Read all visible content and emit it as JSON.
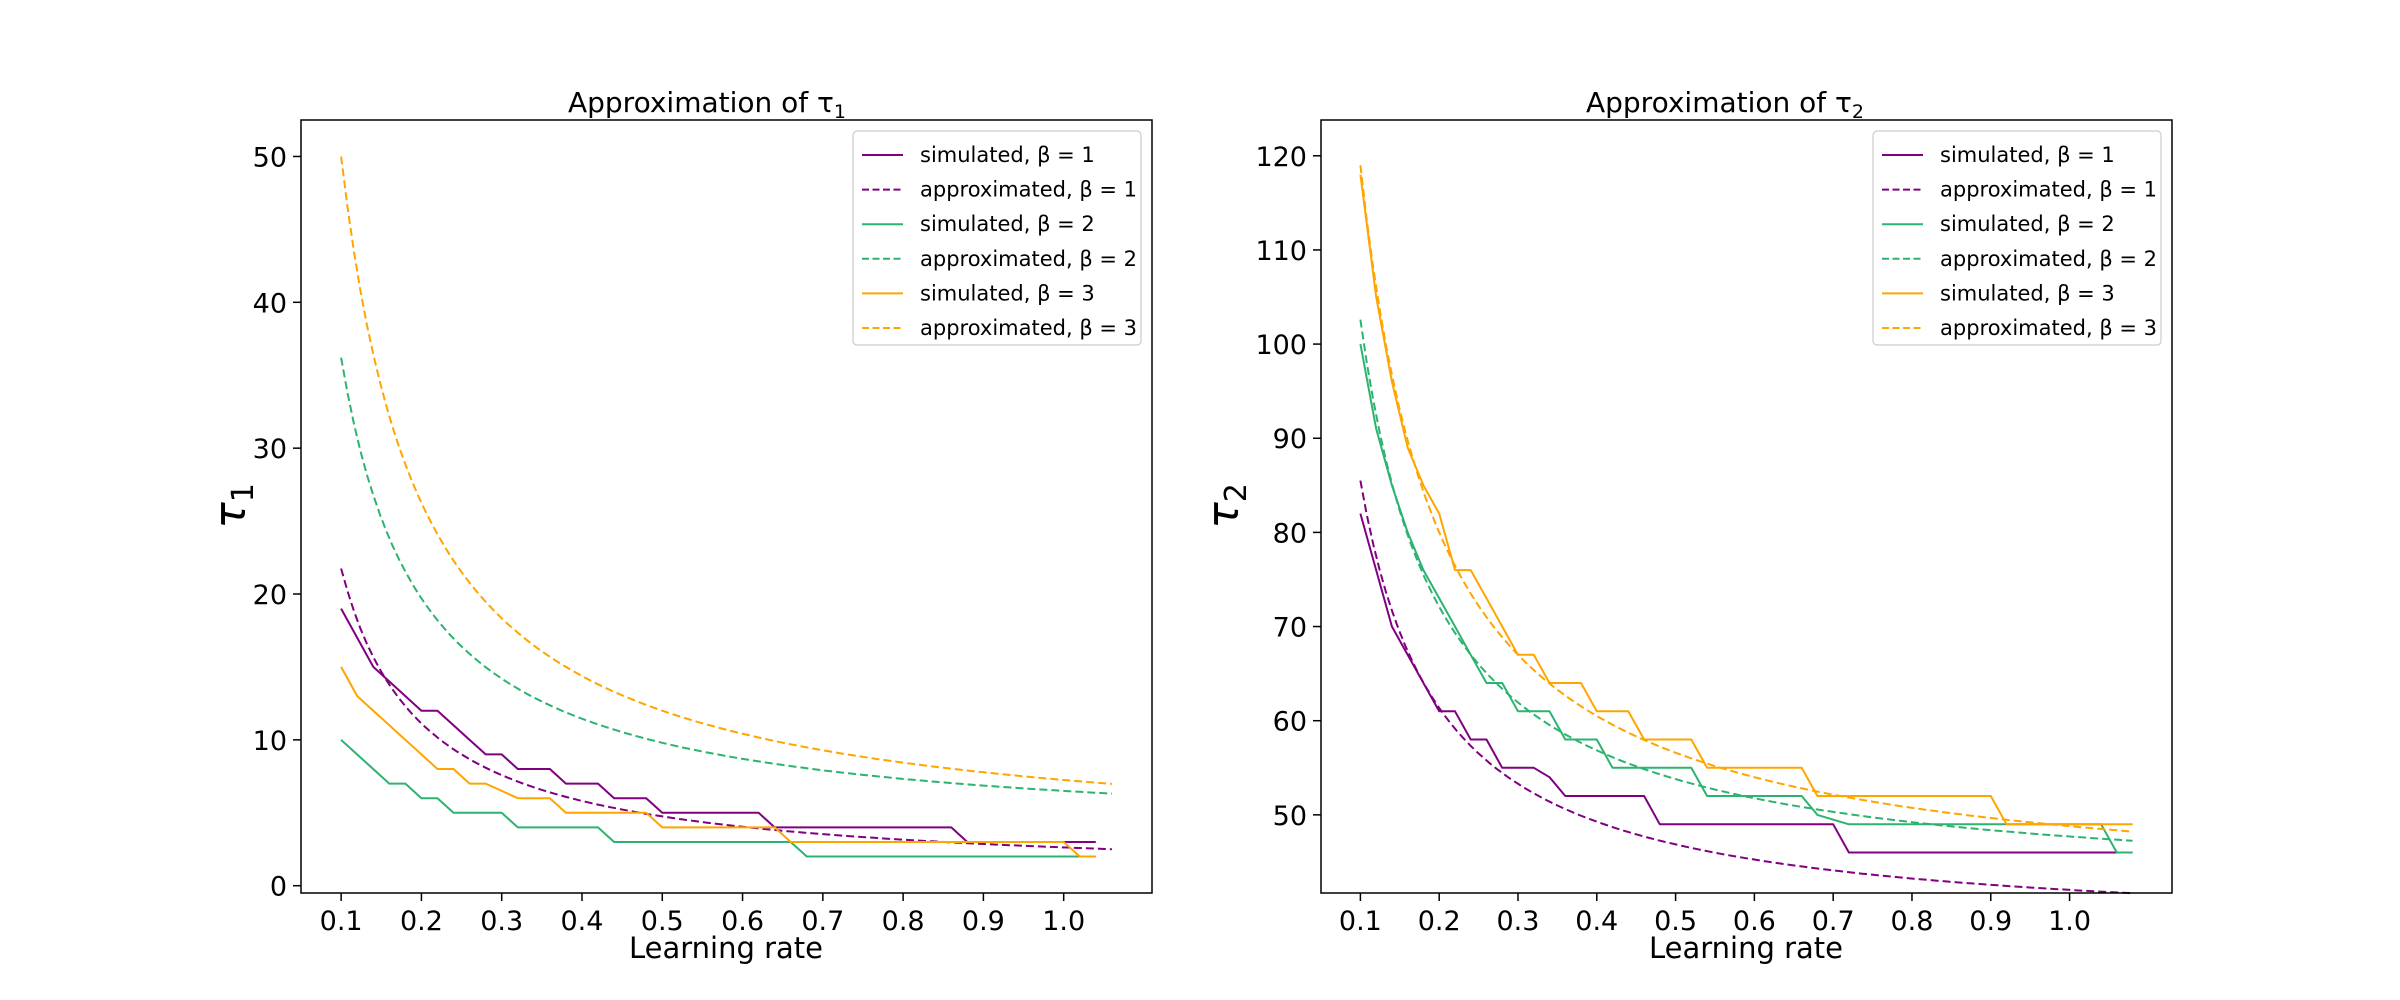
{
  "chart_data": [
    {
      "type": "line",
      "title": "Approximation of τ",
      "title_subscript": "1",
      "xlabel": "Learning rate",
      "ylabel": "τ",
      "ylabel_subscript": "1",
      "xlim": [
        0.05,
        1.11
      ],
      "ylim": [
        -0.5,
        52.5
      ],
      "xticks": [
        0.1,
        0.2,
        0.3,
        0.4,
        0.5,
        0.6,
        0.7,
        0.8,
        0.9,
        1.0
      ],
      "xtick_labels": [
        "0.1",
        "0.2",
        "0.3",
        "0.4",
        "0.5",
        "0.6",
        "0.7",
        "0.8",
        "0.9",
        "1.0"
      ],
      "yticks": [
        0,
        10,
        20,
        30,
        40,
        50
      ],
      "ytick_labels": [
        "0",
        "10",
        "20",
        "30",
        "40",
        "50"
      ],
      "grid": false,
      "legend_position": "top-right",
      "series": [
        {
          "name": "simulated, β = 1",
          "color": "#800080",
          "dash": "solid",
          "x": [
            0.1,
            0.14,
            0.18,
            0.2,
            0.22,
            0.26,
            0.28,
            0.3,
            0.32,
            0.34,
            0.36,
            0.38,
            0.4,
            0.42,
            0.44,
            0.46,
            0.48,
            0.5,
            0.52,
            0.54,
            0.56,
            0.58,
            0.6,
            0.62,
            0.64,
            0.66,
            0.68,
            0.7,
            0.72,
            0.74,
            0.76,
            0.78,
            0.8,
            0.82,
            0.84,
            0.86,
            0.88,
            0.9,
            0.92,
            0.94,
            0.96,
            0.98,
            1.0,
            1.02,
            1.04
          ],
          "y": [
            19,
            15,
            13,
            12,
            12,
            10,
            9,
            9,
            8,
            8,
            8,
            7,
            7,
            7,
            6,
            6,
            6,
            5,
            5,
            5,
            5,
            5,
            5,
            5,
            4,
            4,
            4,
            4,
            4,
            4,
            4,
            4,
            4,
            4,
            4,
            4,
            3,
            3,
            3,
            3,
            3,
            3,
            3,
            3,
            3
          ]
        },
        {
          "name": "approximated, β = 1",
          "color": "#800080",
          "dash": "dashed",
          "formula": "2.125/x + 0.5",
          "x_range": [
            0.1,
            1.06
          ]
        },
        {
          "name": "simulated, β = 2",
          "color": "#2db370",
          "dash": "solid",
          "x": [
            0.1,
            0.16,
            0.18,
            0.2,
            0.22,
            0.24,
            0.3,
            0.32,
            0.42,
            0.44,
            0.66,
            0.68,
            1.04
          ],
          "y": [
            10,
            7,
            7,
            6,
            6,
            5,
            5,
            4,
            4,
            3,
            3,
            2,
            2
          ]
        },
        {
          "name": "approximated, β = 2",
          "color": "#2db370",
          "dash": "dashed",
          "formula": "3.3/x + 3.2",
          "x_range": [
            0.1,
            1.06
          ]
        },
        {
          "name": "simulated, β = 3",
          "color": "#ffa500",
          "dash": "solid",
          "x": [
            0.1,
            0.12,
            0.22,
            0.24,
            0.26,
            0.28,
            0.32,
            0.34,
            0.36,
            0.38,
            0.46,
            0.48,
            0.5,
            0.62,
            0.64,
            0.66,
            0.68,
            0.9,
            0.92,
            1.0,
            1.02,
            1.04
          ],
          "y": [
            15,
            13,
            8,
            8,
            7,
            7,
            6,
            6,
            6,
            5,
            5,
            5,
            4,
            4,
            4,
            3,
            3,
            3,
            3,
            3,
            2,
            2
          ]
        },
        {
          "name": "approximated, β = 3",
          "color": "#ffa500",
          "dash": "dashed",
          "formula": "4.75/x + 2.5",
          "x_range": [
            0.1,
            1.06
          ]
        }
      ]
    },
    {
      "type": "line",
      "title": "Approximation of τ",
      "title_subscript": "2",
      "xlabel": "Learning rate",
      "ylabel": "τ",
      "ylabel_subscript": "2",
      "xlim": [
        0.05,
        1.13
      ],
      "ylim": [
        41.7,
        123.8
      ],
      "xticks": [
        0.1,
        0.2,
        0.3,
        0.4,
        0.5,
        0.6,
        0.7,
        0.8,
        0.9,
        1.0
      ],
      "xtick_labels": [
        "0.1",
        "0.2",
        "0.3",
        "0.4",
        "0.5",
        "0.6",
        "0.7",
        "0.8",
        "0.9",
        "1.0"
      ],
      "yticks": [
        50,
        60,
        70,
        80,
        90,
        100,
        110,
        120
      ],
      "ytick_labels": [
        "50",
        "60",
        "70",
        "80",
        "90",
        "100",
        "110",
        "120"
      ],
      "grid": false,
      "legend_position": "top-right",
      "series": [
        {
          "name": "simulated, β = 1",
          "color": "#800080",
          "dash": "solid",
          "x": [
            0.1,
            0.14,
            0.2,
            0.22,
            0.24,
            0.26,
            0.28,
            0.32,
            0.34,
            0.36,
            0.46,
            0.48,
            0.52,
            0.54,
            0.7,
            0.72,
            0.78,
            0.8,
            0.9,
            0.92,
            1.04,
            1.06,
            1.08
          ],
          "y": [
            82,
            70,
            61,
            61,
            58,
            58,
            55,
            55,
            54,
            52,
            52,
            49,
            49,
            49,
            49,
            46,
            46,
            46,
            46,
            46,
            46,
            46,
            46
          ]
        },
        {
          "name": "approximated, β = 1",
          "color": "#800080",
          "dash": "dashed",
          "formula": "4.83/x + 37.2",
          "x_range": [
            0.1,
            1.08
          ]
        },
        {
          "name": "simulated, β = 2",
          "color": "#2db370",
          "dash": "solid",
          "x": [
            0.1,
            0.12,
            0.14,
            0.16,
            0.18,
            0.2,
            0.22,
            0.24,
            0.26,
            0.28,
            0.3,
            0.32,
            0.34,
            0.36,
            0.38,
            0.4,
            0.42,
            0.46,
            0.48,
            0.52,
            0.54,
            0.66,
            0.68,
            0.72,
            0.76,
            0.8,
            0.9,
            0.92,
            1.0,
            1.04,
            1.06,
            1.08
          ],
          "y": [
            100,
            91,
            85,
            80,
            76,
            73,
            70,
            67,
            64,
            64,
            61,
            61,
            61,
            58,
            58,
            58,
            55,
            55,
            55,
            55,
            52,
            52,
            50,
            49,
            49,
            49,
            49,
            49,
            49,
            49,
            46,
            46
          ]
        },
        {
          "name": "approximated, β = 2",
          "color": "#2db370",
          "dash": "dashed",
          "formula": "6.1/x + 41.6",
          "x_range": [
            0.1,
            1.08
          ]
        },
        {
          "name": "simulated, β = 3",
          "color": "#ffa500",
          "dash": "solid",
          "x": [
            0.1,
            0.12,
            0.14,
            0.16,
            0.18,
            0.2,
            0.22,
            0.24,
            0.26,
            0.28,
            0.3,
            0.32,
            0.34,
            0.36,
            0.38,
            0.4,
            0.42,
            0.44,
            0.46,
            0.48,
            0.5,
            0.52,
            0.54,
            0.56,
            0.58,
            0.62,
            0.64,
            0.66,
            0.68,
            0.72,
            0.8,
            0.9,
            0.92,
            1.0,
            1.04,
            1.06,
            1.08
          ],
          "y": [
            118,
            105,
            96,
            89,
            85,
            82,
            76,
            76,
            73,
            70,
            67,
            67,
            64,
            64,
            64,
            61,
            61,
            61,
            58,
            58,
            58,
            58,
            55,
            55,
            55,
            55,
            55,
            55,
            52,
            52,
            52,
            52,
            49,
            49,
            49,
            49,
            49
          ]
        },
        {
          "name": "approximated, β = 3",
          "color": "#ffa500",
          "dash": "dashed",
          "formula": "7.8/x + 41",
          "x_range": [
            0.1,
            1.08
          ]
        }
      ]
    }
  ]
}
